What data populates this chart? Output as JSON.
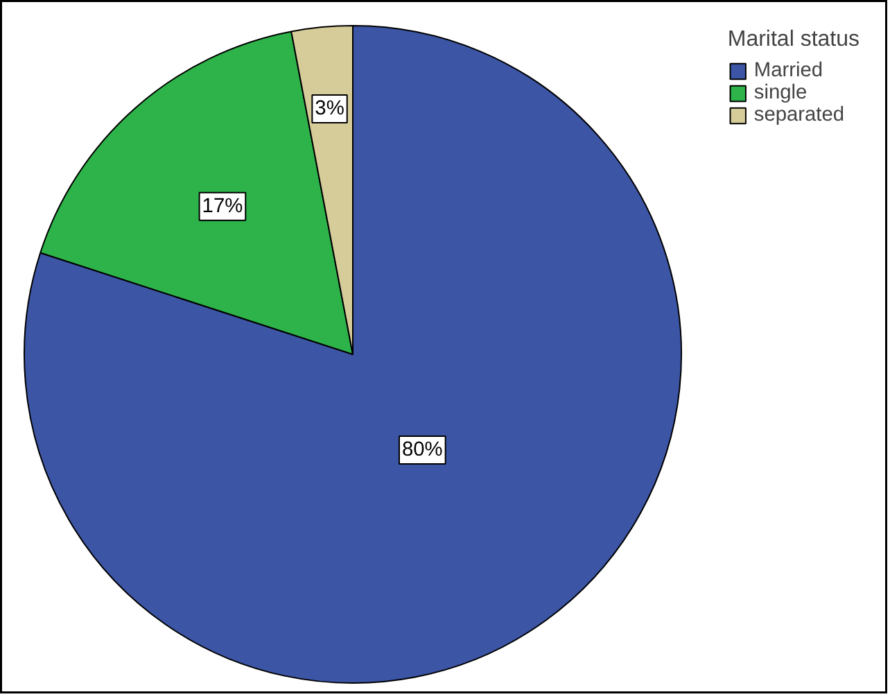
{
  "chart_data": {
    "type": "pie",
    "legend_title": "Marital status",
    "categories": [
      "Married",
      "single",
      "separated"
    ],
    "values": [
      80,
      17,
      3
    ],
    "colors": [
      "#3c55a5",
      "#2db34a",
      "#d6cc9a"
    ],
    "value_labels": [
      "80%",
      "17%",
      "3%"
    ],
    "legend": "top right"
  }
}
